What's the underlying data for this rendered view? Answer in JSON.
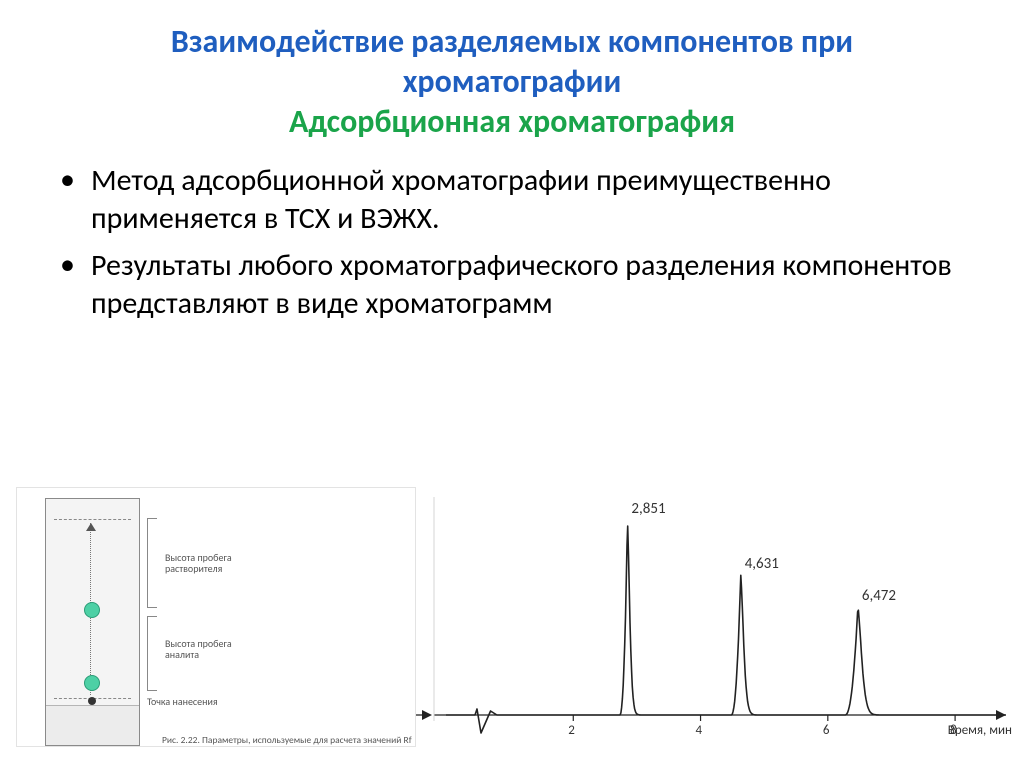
{
  "title": {
    "main": "Взаимодействие разделяемых компонентов при хроматографии",
    "sub": "Адсорбционная хроматография",
    "main_color": "#1f5ebf",
    "sub_color": "#1aa44a"
  },
  "bullets": [
    "Метод адсорбционной хроматографии преимущественно применяется в ТСХ и ВЭЖХ.",
    "Результаты любого хроматографического разделения компонентов представляют в виде хроматограмм"
  ],
  "tlc": {
    "label_solvent_height": "Высота пробега растворителя",
    "label_analyte_height": "Высота пробега аналита",
    "label_origin": "Точка нанесения",
    "caption": "Рис. 2.22. Параметры, используемые для расчета значений Rf",
    "spot_color": "#4dd0a5",
    "plate_bg": "#f4f4f4"
  },
  "chromatogram": {
    "type": "line",
    "x_axis_label": "Время, мин",
    "x_ticks": [
      2,
      4,
      6,
      8
    ],
    "xlim": [
      0,
      8.8
    ],
    "peaks": [
      {
        "rt": 2.851,
        "height": 195,
        "width": 0.12,
        "label": "2,851"
      },
      {
        "rt": 4.631,
        "height": 140,
        "width": 0.15,
        "label": "4,631"
      },
      {
        "rt": 6.472,
        "height": 108,
        "width": 0.2,
        "label": "6,472"
      }
    ],
    "baseline_y": 228,
    "inject_dip": {
      "x": 0.55,
      "depth": 18,
      "width": 0.25
    },
    "line_color": "#222222",
    "axis_color": "#222222",
    "background_color": "#ffffff"
  }
}
